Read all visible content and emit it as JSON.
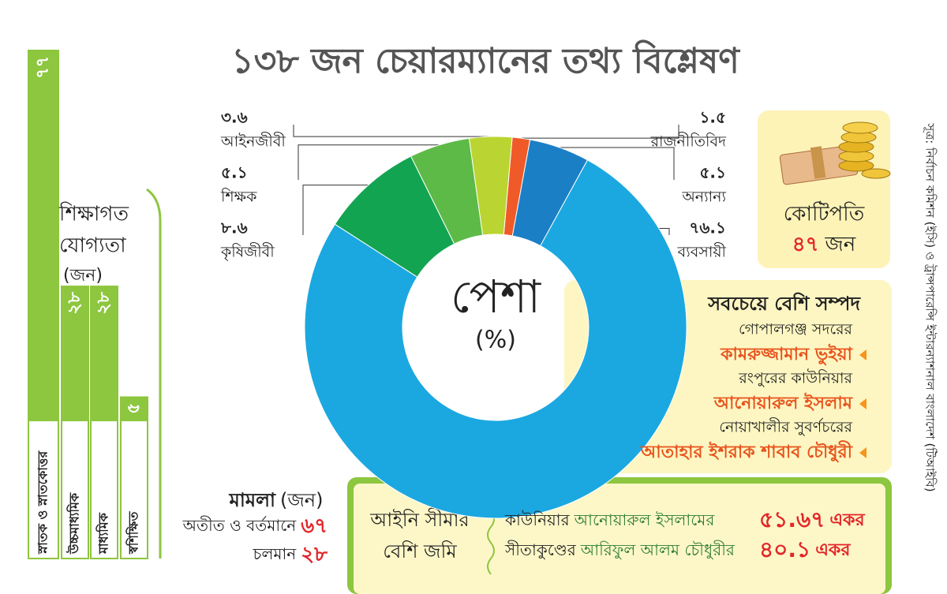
{
  "title": "১৩৮ জন চেয়ারম্যানের তথ্য বিশ্লেষণ",
  "chart_data": [
    {
      "type": "donut",
      "title": "পেশা",
      "unit_label": "(%)",
      "categories": [
        "রাজনীতিবিদ",
        "অন্যান্য",
        "ব্যবসায়ী",
        "কৃষিজীবী",
        "শিক্ষক",
        "আইনজীবী"
      ],
      "values": [
        1.5,
        5.1,
        76.1,
        8.6,
        5.1,
        3.6
      ],
      "value_labels": [
        "১.৫",
        "৫.১",
        "৭৬.১",
        "৮.৬",
        "৫.১",
        "৩.৬"
      ],
      "colors": [
        "#ef5a28",
        "#1b7fc6",
        "#1ba8e0",
        "#13a452",
        "#5dba47",
        "#bad531"
      ]
    },
    {
      "type": "bar",
      "title_lines": [
        "শিক্ষাগত",
        "যোগ্যতা"
      ],
      "unit_label": "(জন)",
      "categories": [
        "স্নাতক ও স্নাতকোত্তর",
        "উচ্চমাধ্যমিক",
        "মাধ্যমিক",
        "স্বশিক্ষিত"
      ],
      "values": [
        77,
        28,
        28,
        5
      ],
      "value_labels": [
        "৭৭",
        "২৮",
        "২৮",
        "৫"
      ],
      "color": "#8dc63f"
    }
  ],
  "millionaires": {
    "label": "কোটিপতি",
    "count": "৪৭",
    "unit": "জন"
  },
  "richest": {
    "title": "সবচেয়ে বেশি সম্পদ",
    "entries": [
      {
        "place": "গোপালগঞ্জ সদরের",
        "name": "কামরুজ্জামান ভুইয়া"
      },
      {
        "place": "রংপুরের কাউনিয়ার",
        "name": "আনোয়ারুল ইসলাম"
      },
      {
        "place": "নোয়াখালীর সুবর্ণচরের",
        "name": "আতাহার ইশরাক শাবাব চৌধুরী"
      }
    ]
  },
  "cases": {
    "title": "মামলা",
    "unit": "(জন)",
    "rows": [
      {
        "label": "অতীত ও বর্তমানে",
        "count": "৬৭"
      },
      {
        "label": "চলমান",
        "count": "২৮"
      }
    ]
  },
  "excess_land": {
    "title_lines": [
      "আইনি সীমার",
      "বেশি জমি"
    ],
    "rows": [
      {
        "place": "কাউনিয়ার",
        "name": "আনোয়ারুল ইসলামের",
        "amount": "৫১.৬৭",
        "unit": "একর"
      },
      {
        "place": "সীতাকুণ্ডের",
        "name": "আরিফুল আলম চৌধুরীর",
        "amount": "৪০.১",
        "unit": "একর"
      }
    ]
  },
  "source": "সূত্র: নির্বাচন কমিশন (ইসি) ও ট্রান্সপারেন্সি ইন্টারন্যাশনাল বাংলাদেশ (টিআইবি)"
}
